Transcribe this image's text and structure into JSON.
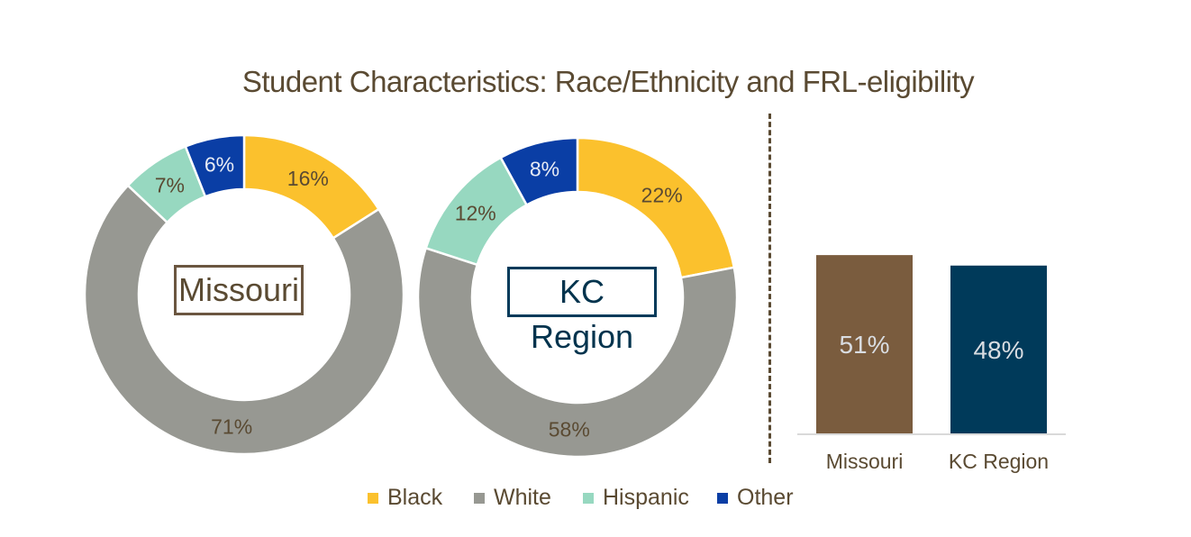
{
  "title": "Student Characteristics: Race/Ethnicity and FRL-eligibility",
  "colors": {
    "Black": "#fbc12d",
    "White": "#979892",
    "Hispanic": "#97d8c0",
    "Other": "#0a3ea5",
    "missouri_bar": "#7a5c3e",
    "kc_bar": "#003a5a",
    "text_brown": "#5a4a32"
  },
  "chart_data": [
    {
      "type": "pie",
      "center_label": "Missouri",
      "categories": [
        "Black",
        "White",
        "Hispanic",
        "Other"
      ],
      "values": [
        16,
        71,
        7,
        6
      ],
      "labels": [
        "16%",
        "71%",
        "7%",
        "6%"
      ]
    },
    {
      "type": "pie",
      "center_label": "KC Region",
      "categories": [
        "Black",
        "White",
        "Hispanic",
        "Other"
      ],
      "values": [
        22,
        58,
        12,
        8
      ],
      "labels": [
        "22%",
        "58%",
        "12%",
        "8%"
      ]
    },
    {
      "type": "bar",
      "categories": [
        "Missouri",
        "KC Region"
      ],
      "values": [
        51,
        48
      ],
      "labels": [
        "51%",
        "48%"
      ],
      "ylim": [
        0,
        100
      ]
    }
  ],
  "legend": [
    {
      "label": "Black",
      "color": "#fbc12d"
    },
    {
      "label": "White",
      "color": "#979892"
    },
    {
      "label": "Hispanic",
      "color": "#97d8c0"
    },
    {
      "label": "Other",
      "color": "#0a3ea5"
    }
  ]
}
